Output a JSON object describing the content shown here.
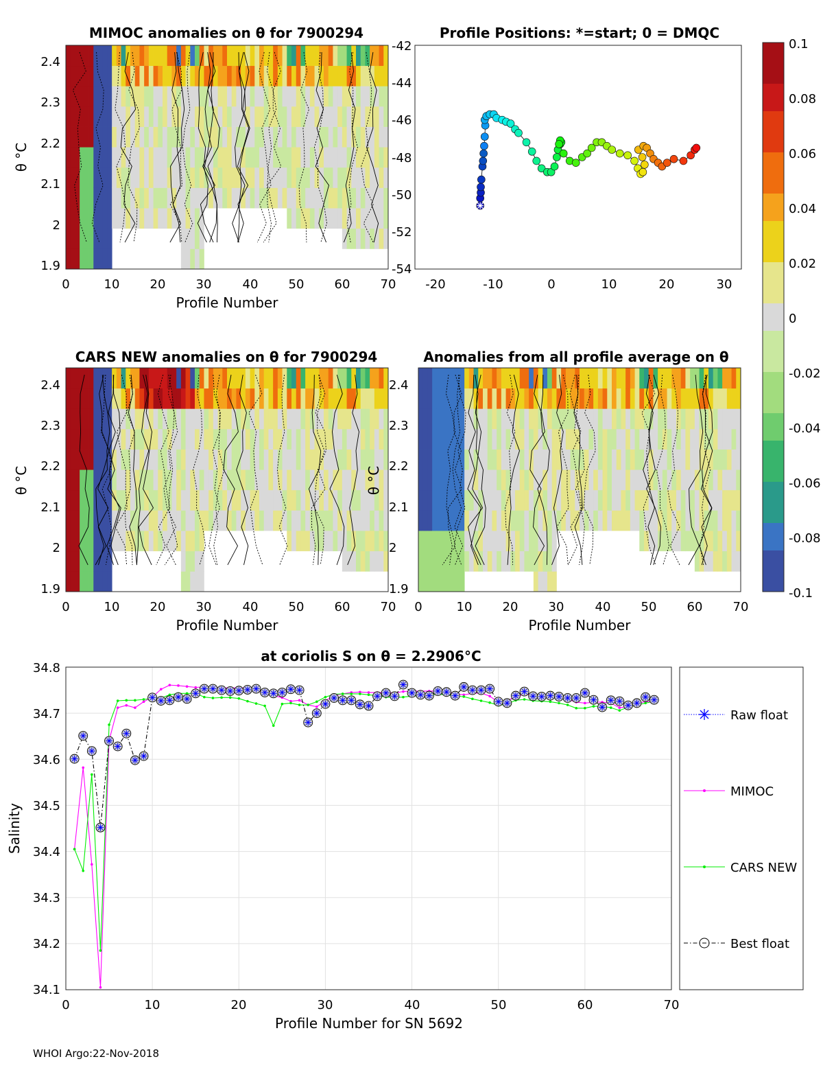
{
  "footer": "WHOI Argo:22-Nov-2018",
  "colorbar": {
    "ticks": [
      "0.1",
      "0.08",
      "0.06",
      "0.04",
      "0.02",
      "0",
      "-0.02",
      "-0.04",
      "-0.06",
      "-0.08",
      "-0.1"
    ],
    "colors": [
      "#a50f15",
      "#c81818",
      "#e03a10",
      "#ef6d0e",
      "#f5a21c",
      "#ecd21b",
      "#e6e58c",
      "#d9d9d9",
      "#c9e8a0",
      "#a2dc7e",
      "#6fcc6e",
      "#38b46c",
      "#2a9a8a",
      "#3a74c4",
      "#3a4fa2"
    ]
  },
  "chart_data": [
    {
      "type": "heatmap",
      "id": "mimoc",
      "title": "MIMOC anomalies on θ  for 7900294",
      "xlabel": "Profile Number",
      "ylabel": "θ °C",
      "xlim": [
        0,
        70
      ],
      "ylim": [
        1.9,
        2.45
      ],
      "xticks": [
        "0",
        "10",
        "20",
        "30",
        "40",
        "50",
        "60",
        "70"
      ],
      "yticks": [
        "1.9",
        "2",
        "2.1",
        "2.2",
        "2.3",
        "2.4"
      ],
      "clim": [
        -0.1,
        0.1
      ]
    },
    {
      "type": "scatter",
      "id": "positions",
      "title": "Profile Positions: *=start; 0 = DMQC",
      "xlim": [
        -25,
        33
      ],
      "ylim": [
        -54,
        -42
      ],
      "xticks": [
        "-20",
        "-10",
        "0",
        "10",
        "20",
        "30"
      ],
      "yticks": [
        "-42",
        "-44",
        "-46",
        "-48",
        "-50",
        "-52",
        "-54"
      ],
      "lon": [
        -13.4,
        -13.4,
        -13.3,
        -13.3,
        -13.2,
        -13.0,
        -12.9,
        -12.8,
        -12.7,
        -12.6,
        -12.5,
        -12.6,
        -12.3,
        -11.7,
        -11.0,
        -10.5,
        -9.5,
        -8.8,
        -8.0,
        -7.2,
        -6.6,
        -5.2,
        -4.2,
        -3.4,
        -2.5,
        -1.5,
        -0.8,
        -0.2,
        0.2,
        0.4,
        0.8,
        1.0,
        0.8,
        0.6,
        1.4,
        2.5,
        3.6,
        4.7,
        5.6,
        6.4,
        7.3,
        8.2,
        9.1,
        10.0,
        11.4,
        12.8,
        14.0,
        14.6,
        15.1,
        15.5,
        15.8,
        15.4,
        14.7,
        15.6,
        16.2,
        16.8,
        17.4,
        18.2,
        18.9,
        19.8,
        21.0,
        22.7,
        24.0,
        24.7,
        25.0
      ],
      "lat": [
        -50.6,
        -50.2,
        -49.9,
        -49.6,
        -49.2,
        -48.5,
        -48.2,
        -47.8,
        -47.4,
        -46.9,
        -46.3,
        -46.0,
        -45.8,
        -45.7,
        -45.7,
        -45.9,
        -46.0,
        -46.1,
        -46.2,
        -46.5,
        -46.7,
        -47.2,
        -47.7,
        -48.2,
        -48.6,
        -48.8,
        -48.8,
        -48.5,
        -48.0,
        -47.6,
        -47.3,
        -47.2,
        -47.1,
        -47.3,
        -47.8,
        -48.2,
        -48.3,
        -48.0,
        -47.8,
        -47.5,
        -47.2,
        -47.2,
        -47.4,
        -47.6,
        -47.8,
        -47.9,
        -48.2,
        -48.6,
        -48.9,
        -48.8,
        -48.4,
        -48.0,
        -47.6,
        -47.4,
        -47.5,
        -47.8,
        -48.1,
        -48.3,
        -48.5,
        -48.3,
        -48.1,
        -48.2,
        -47.9,
        -47.6,
        -47.5
      ]
    },
    {
      "type": "heatmap",
      "id": "cars",
      "title": "CARS NEW anomalies on θ for 7900294",
      "xlabel": "Profile Number",
      "ylabel": "θ °C",
      "xlim": [
        0,
        70
      ],
      "ylim": [
        1.9,
        2.45
      ],
      "xticks": [
        "0",
        "10",
        "20",
        "30",
        "40",
        "50",
        "60",
        "70"
      ],
      "yticks": [
        "1.9",
        "2",
        "2.1",
        "2.2",
        "2.3",
        "2.4"
      ],
      "clim": [
        -0.1,
        0.1
      ]
    },
    {
      "type": "heatmap",
      "id": "avg",
      "title": "Anomalies from all profile average on θ",
      "xlabel": "Profile Number",
      "ylabel": "θ °C",
      "xlim": [
        0,
        70
      ],
      "ylim": [
        1.9,
        2.45
      ],
      "xticks": [
        "0",
        "10",
        "20",
        "30",
        "40",
        "50",
        "60",
        "70"
      ],
      "yticks": [
        "1.9",
        "2",
        "2.1",
        "2.2",
        "2.3",
        "2.4"
      ],
      "clim": [
        -0.1,
        0.1
      ]
    },
    {
      "type": "line",
      "id": "salinity",
      "title": "at coriolis S on θ = 2.2906°C",
      "xlabel": "Profile Number for SN 5692",
      "ylabel": "Salinity",
      "xlim": [
        0,
        70
      ],
      "ylim": [
        34.1,
        34.8
      ],
      "xticks": [
        "0",
        "10",
        "20",
        "30",
        "40",
        "50",
        "60",
        "70"
      ],
      "yticks": [
        "34.1",
        "34.2",
        "34.3",
        "34.4",
        "34.5",
        "34.6",
        "34.7",
        "34.8"
      ],
      "legend": [
        "Raw float",
        "MIMOC",
        "CARS NEW",
        "Best float"
      ],
      "series": [
        {
          "name": "Raw float",
          "color": "#0000ff",
          "values": [
            34.601,
            34.651,
            34.618,
            34.452,
            34.64,
            34.628,
            34.656,
            34.598,
            34.607,
            34.734,
            34.727,
            34.728,
            34.735,
            34.731,
            34.743,
            34.753,
            34.753,
            34.75,
            34.748,
            34.749,
            34.751,
            34.753,
            34.745,
            34.743,
            34.745,
            34.752,
            34.75,
            34.68,
            34.7,
            34.72,
            34.733,
            34.728,
            34.728,
            34.719,
            34.716,
            34.737,
            34.744,
            34.737,
            34.762,
            34.744,
            34.74,
            34.738,
            34.748,
            34.746,
            34.738,
            34.757,
            34.75,
            34.75,
            34.753,
            34.725,
            34.722,
            34.738,
            34.747,
            34.737,
            34.736,
            34.738,
            34.736,
            34.733,
            34.733,
            34.744,
            34.729,
            34.713,
            34.728,
            34.726,
            34.717,
            34.722,
            34.735,
            34.729
          ]
        },
        {
          "name": "MIMOC",
          "color": "#ff00ff",
          "values": [
            34.405,
            34.582,
            34.372,
            34.105,
            34.641,
            34.712,
            34.717,
            34.712,
            34.725,
            34.735,
            34.752,
            34.761,
            34.76,
            34.758,
            34.756,
            34.757,
            34.756,
            34.755,
            34.755,
            34.755,
            34.755,
            34.75,
            34.742,
            34.738,
            34.734,
            34.726,
            34.728,
            34.718,
            34.714,
            34.727,
            34.738,
            34.742,
            34.745,
            34.746,
            34.745,
            34.745,
            34.745,
            34.744,
            34.747,
            34.748,
            34.748,
            34.748,
            34.748,
            34.748,
            34.742,
            34.74,
            34.743,
            34.744,
            34.737,
            34.724,
            34.727,
            34.736,
            34.741,
            34.739,
            34.737,
            34.737,
            34.734,
            34.73,
            34.724,
            34.722,
            34.724,
            34.724,
            34.722,
            34.712,
            34.714,
            34.722,
            34.725,
            34.726
          ]
        },
        {
          "name": "CARS NEW",
          "color": "#00ee00",
          "values": [
            34.405,
            34.358,
            34.567,
            34.185,
            34.675,
            34.727,
            34.728,
            34.728,
            34.73,
            34.732,
            34.733,
            34.74,
            34.743,
            34.743,
            34.743,
            34.735,
            34.733,
            34.734,
            34.734,
            34.732,
            34.726,
            34.721,
            34.716,
            34.673,
            34.72,
            34.722,
            34.718,
            34.718,
            34.725,
            34.735,
            34.741,
            34.742,
            34.742,
            34.742,
            34.74,
            34.738,
            34.735,
            34.734,
            34.735,
            34.737,
            34.738,
            34.74,
            34.741,
            34.74,
            34.737,
            34.736,
            34.731,
            34.727,
            34.723,
            34.717,
            34.72,
            34.728,
            34.73,
            34.727,
            34.726,
            34.725,
            34.722,
            34.718,
            34.711,
            34.711,
            34.715,
            34.715,
            34.712,
            34.706,
            34.713,
            34.718,
            34.722,
            34.726
          ]
        }
      ]
    }
  ]
}
